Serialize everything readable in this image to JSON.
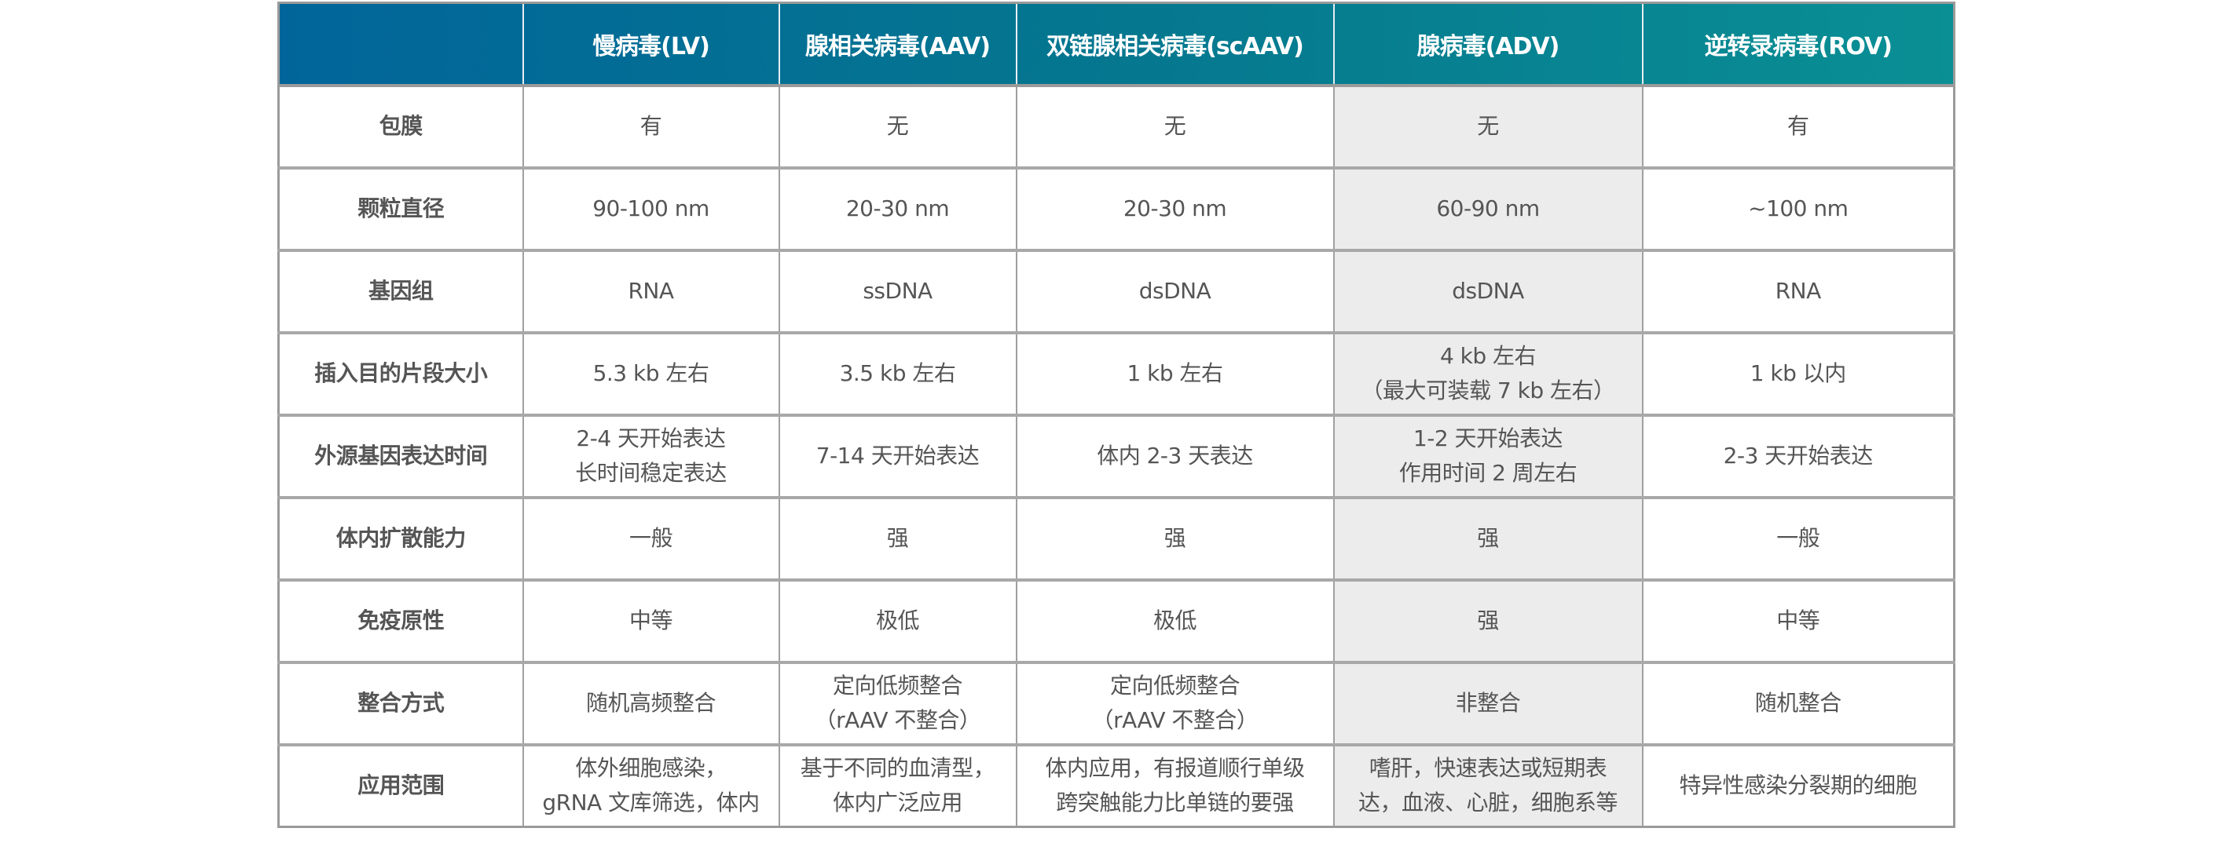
{
  "header": {
    "corner": "",
    "columns": [
      "慢病毒(LV)",
      "腺相关病毒(AAV)",
      "双链腺相关病毒(scAAV)",
      "腺病毒(ADV)",
      "逆转录病毒(ROV)"
    ]
  },
  "colors": {
    "header_start": "#01659a",
    "header_end": "#0a8f94",
    "highlight_column": "#ececec"
  },
  "rows": [
    {
      "label": "包膜",
      "cells": [
        [
          "有"
        ],
        [
          "无"
        ],
        [
          "无"
        ],
        [
          "无"
        ],
        [
          "有"
        ]
      ]
    },
    {
      "label": "颗粒直径",
      "cells": [
        [
          "90-100 nm"
        ],
        [
          "20-30 nm"
        ],
        [
          "20-30 nm"
        ],
        [
          "60-90 nm"
        ],
        [
          "~100 nm"
        ]
      ]
    },
    {
      "label": "基因组",
      "cells": [
        [
          "RNA"
        ],
        [
          "ssDNA"
        ],
        [
          "dsDNA"
        ],
        [
          "dsDNA"
        ],
        [
          "RNA"
        ]
      ]
    },
    {
      "label": "插入目的片段大小",
      "cells": [
        [
          "5.3 kb 左右"
        ],
        [
          "3.5 kb 左右"
        ],
        [
          "1 kb 左右"
        ],
        [
          "4 kb 左右",
          "（最大可装载 7 kb 左右）"
        ],
        [
          "1 kb 以内"
        ]
      ]
    },
    {
      "label": "外源基因表达时间",
      "cells": [
        [
          "2-4 天开始表达",
          "长时间稳定表达"
        ],
        [
          "7-14 天开始表达"
        ],
        [
          "体内 2-3 天表达"
        ],
        [
          "1-2 天开始表达",
          "作用时间 2 周左右"
        ],
        [
          "2-3 天开始表达"
        ]
      ]
    },
    {
      "label": "体内扩散能力",
      "cells": [
        [
          "一般"
        ],
        [
          "强"
        ],
        [
          "强"
        ],
        [
          "强"
        ],
        [
          "一般"
        ]
      ]
    },
    {
      "label": "免疫原性",
      "cells": [
        [
          "中等"
        ],
        [
          "极低"
        ],
        [
          "极低"
        ],
        [
          "强"
        ],
        [
          "中等"
        ]
      ]
    },
    {
      "label": "整合方式",
      "cells": [
        [
          "随机高频整合"
        ],
        [
          "定向低频整合",
          "（rAAV 不整合）"
        ],
        [
          "定向低频整合",
          "（rAAV 不整合）"
        ],
        [
          "非整合"
        ],
        [
          "随机整合"
        ]
      ]
    },
    {
      "label": "应用范围",
      "cells": [
        [
          "体外细胞感染，",
          "gRNA 文库筛选，体内"
        ],
        [
          "基于不同的血清型，",
          "体内广泛应用"
        ],
        [
          "体内应用，有报道顺行单级",
          "跨突触能力比单链的要强"
        ],
        [
          "嗜肝，快速表达或短期表",
          "达，血液、心脏，细胞系等"
        ],
        [
          "特异性感染分裂期的细胞"
        ]
      ]
    }
  ]
}
